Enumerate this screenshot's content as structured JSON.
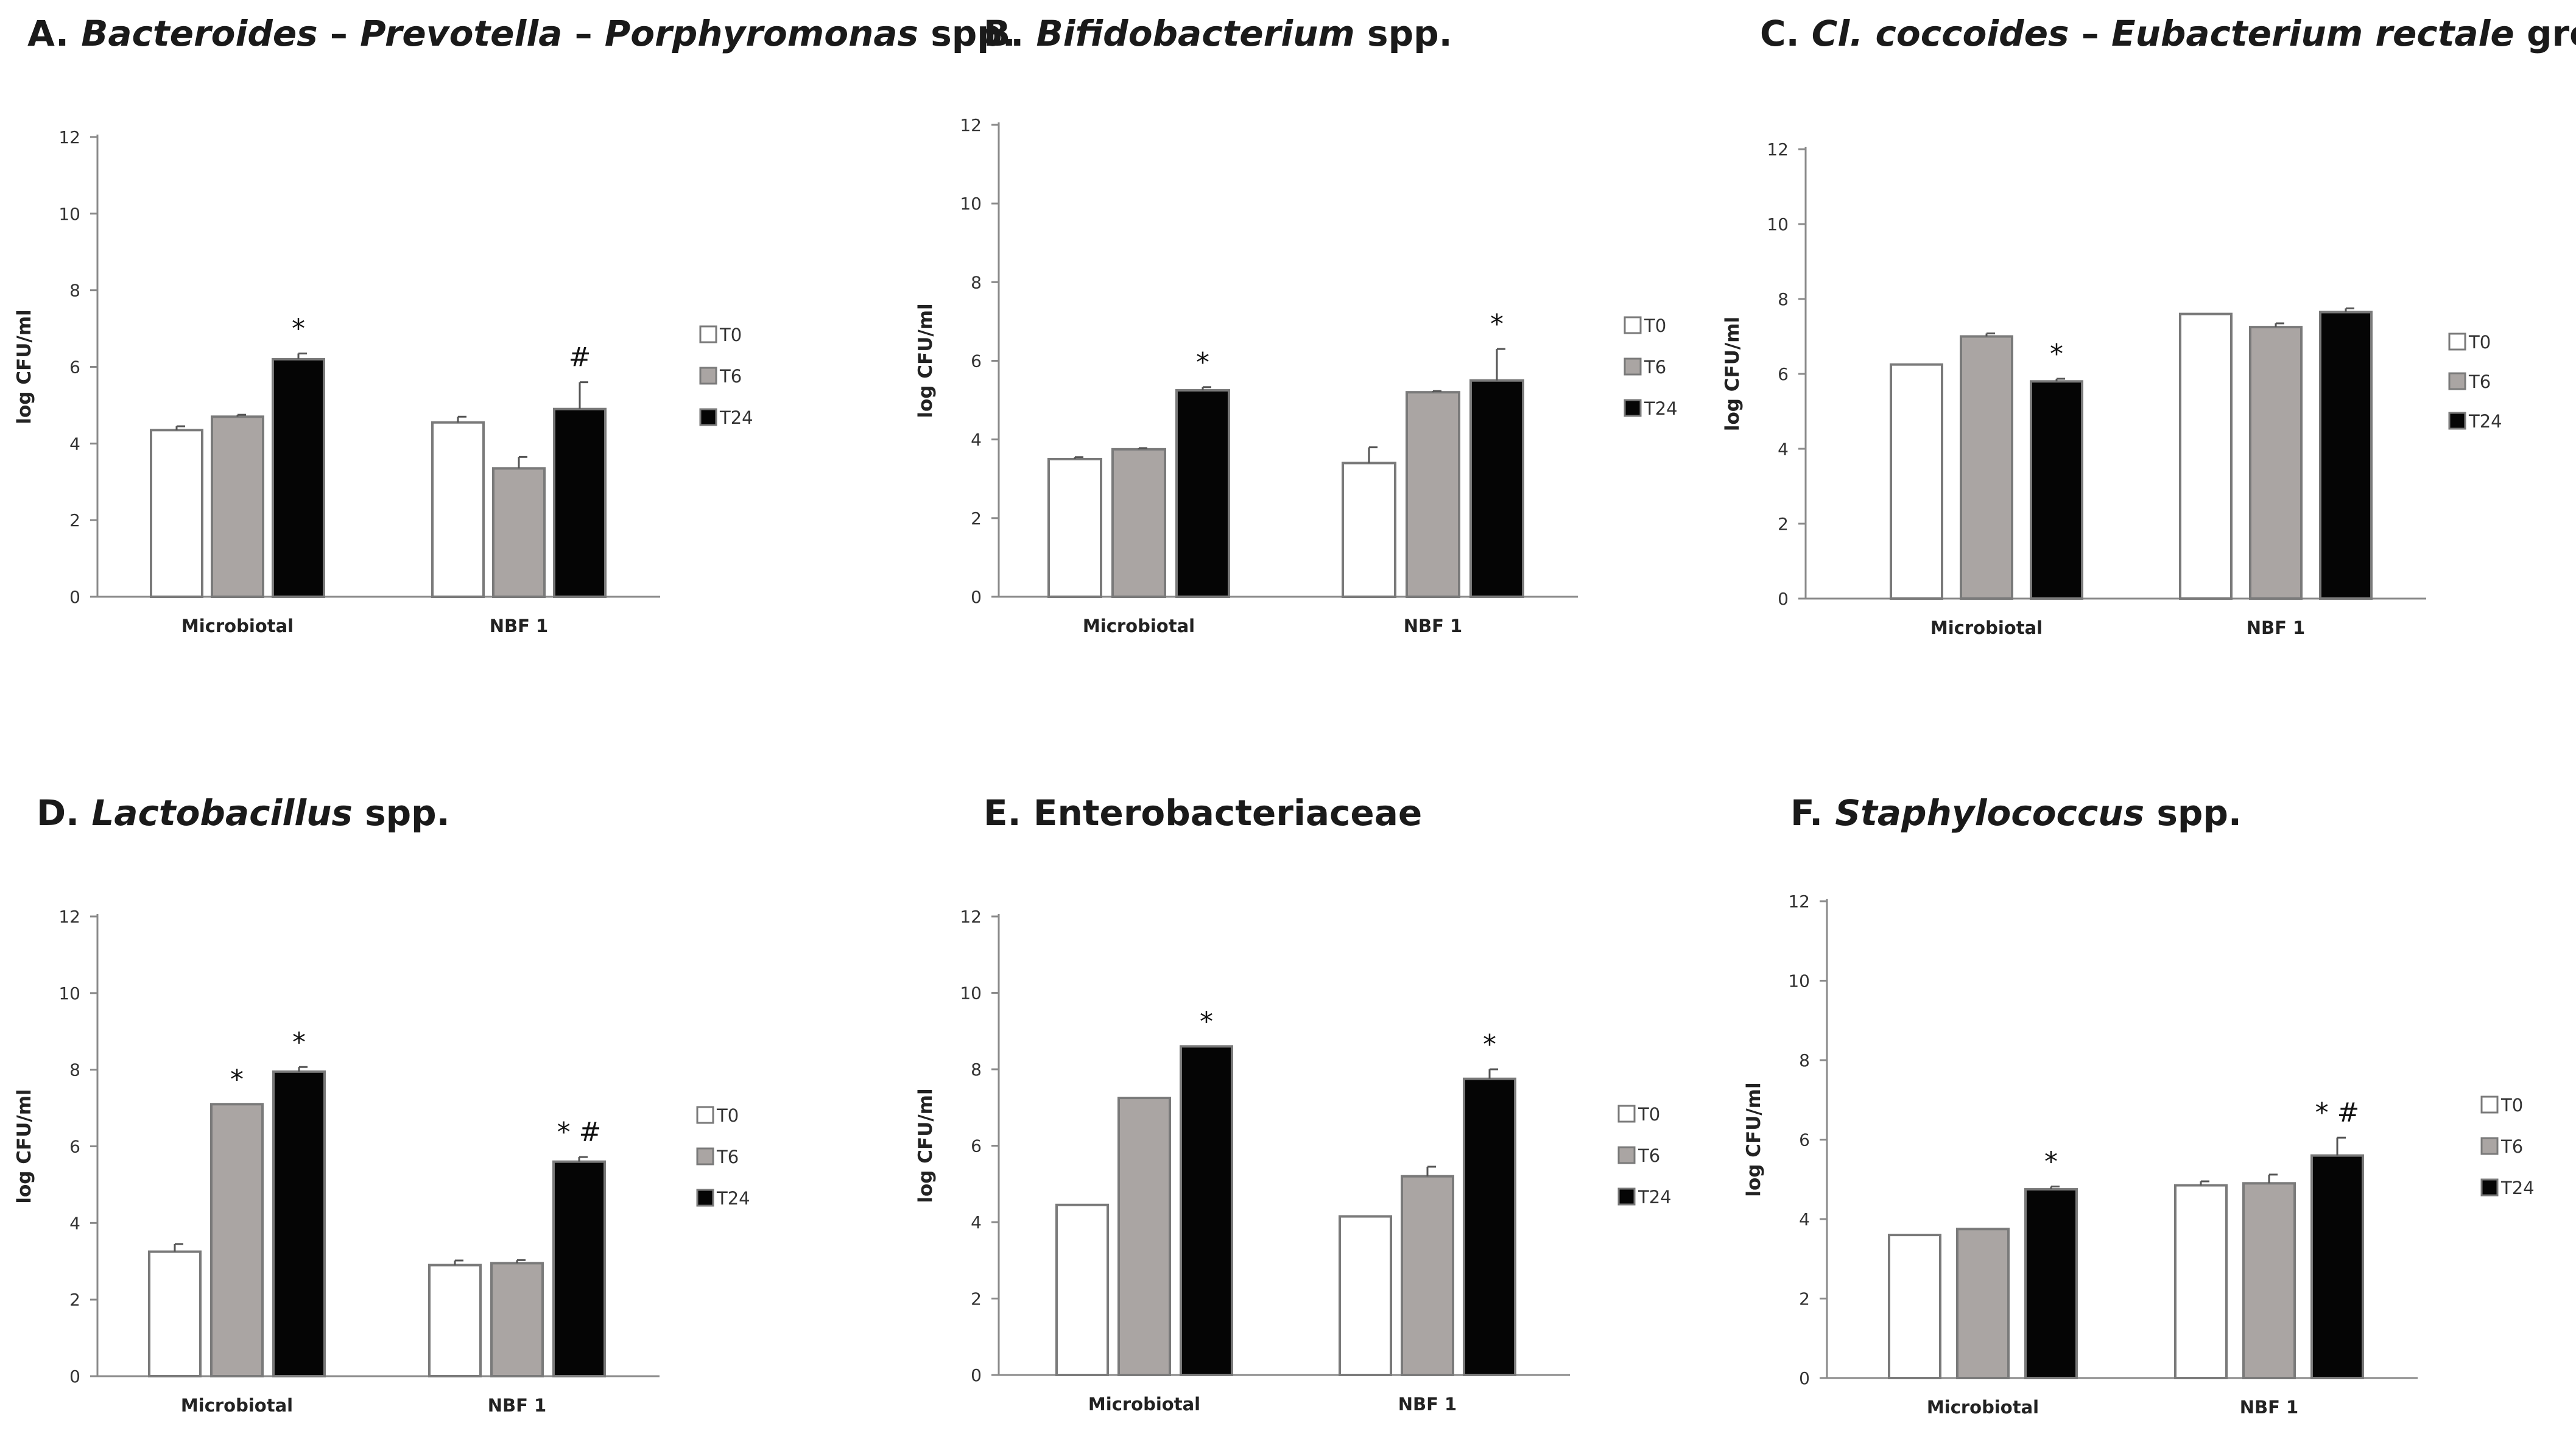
{
  "colors": {
    "T0": "#ffffff",
    "T6": "#aaa5a3",
    "T24": "#050505",
    "axis": "#8a8a8a",
    "bar_edge": "#7a7a7a"
  },
  "chart_data": [
    {
      "id": "A",
      "type": "bar",
      "title_parts": [
        "A. ",
        "Bacteroides",
        " – ",
        "Prevotella",
        " – ",
        "Porphyromonas",
        " spp."
      ],
      "categories": [
        "Microbiotal",
        "NBF 1"
      ],
      "ylabel": "log CFU/ml",
      "ylim": [
        0,
        12
      ],
      "yticks": [
        "0",
        "2",
        "4",
        "6",
        "8",
        "10",
        "12"
      ],
      "series": [
        {
          "name": "T0",
          "values": [
            4.35,
            4.55
          ],
          "errors": [
            0.1,
            0.15
          ]
        },
        {
          "name": "T6",
          "values": [
            4.7,
            3.35
          ],
          "errors": [
            0.05,
            0.3
          ]
        },
        {
          "name": "T24",
          "values": [
            6.2,
            4.9
          ],
          "errors": [
            0.15,
            0.7
          ]
        }
      ],
      "legend": [
        "T0",
        "T6",
        "T24"
      ],
      "annotations": [
        {
          "series": "T24",
          "category": "Microbiotal",
          "text": "*"
        },
        {
          "series": "T24",
          "category": "NBF 1",
          "text": "#"
        }
      ]
    },
    {
      "id": "B",
      "type": "bar",
      "title_parts": [
        "B. ",
        "Bifidobacterium",
        " spp."
      ],
      "categories": [
        "Microbiotal",
        "NBF 1"
      ],
      "ylabel": "log CFU/ml",
      "ylim": [
        0,
        12
      ],
      "yticks": [
        "0",
        "2",
        "4",
        "6",
        "8",
        "10",
        "12"
      ],
      "series": [
        {
          "name": "T0",
          "values": [
            3.5,
            3.4
          ],
          "errors": [
            0.05,
            0.4
          ]
        },
        {
          "name": "T6",
          "values": [
            3.75,
            5.2
          ],
          "errors": [
            0.03,
            0.03
          ]
        },
        {
          "name": "T24",
          "values": [
            5.25,
            5.5
          ],
          "errors": [
            0.08,
            0.8
          ]
        }
      ],
      "legend": [
        "T0",
        "T6",
        "T24"
      ],
      "annotations": [
        {
          "series": "T24",
          "category": "Microbiotal",
          "text": "*"
        },
        {
          "series": "T24",
          "category": "NBF 1",
          "text": "*"
        }
      ]
    },
    {
      "id": "C",
      "type": "bar",
      "title_parts": [
        "C. ",
        "Cl. coccoides",
        " – ",
        "Eubacterium rectale",
        " group"
      ],
      "categories": [
        "Microbiotal",
        "NBF 1"
      ],
      "ylabel": "log CFU/ml",
      "ylim": [
        0,
        12
      ],
      "yticks": [
        "0",
        "2",
        "4",
        "6",
        "8",
        "10",
        "12"
      ],
      "series": [
        {
          "name": "T0",
          "values": [
            6.25,
            7.6
          ],
          "errors": [
            0.0,
            0.0
          ]
        },
        {
          "name": "T6",
          "values": [
            7.0,
            7.25
          ],
          "errors": [
            0.08,
            0.1
          ]
        },
        {
          "name": "T24",
          "values": [
            5.8,
            7.65
          ],
          "errors": [
            0.07,
            0.1
          ]
        }
      ],
      "legend": [
        "T0",
        "T6",
        "T24"
      ],
      "annotations": [
        {
          "series": "T24",
          "category": "Microbiotal",
          "text": "*"
        }
      ]
    },
    {
      "id": "D",
      "type": "bar",
      "title_parts": [
        "D. ",
        "Lactobacillus",
        " spp."
      ],
      "categories": [
        "Microbiotal",
        "NBF 1"
      ],
      "ylabel": "log CFU/ml",
      "ylim": [
        0,
        12
      ],
      "yticks": [
        "0",
        "2",
        "4",
        "6",
        "8",
        "10",
        "12"
      ],
      "series": [
        {
          "name": "T0",
          "values": [
            3.25,
            2.9
          ],
          "errors": [
            0.2,
            0.12
          ]
        },
        {
          "name": "T6",
          "values": [
            7.1,
            2.95
          ],
          "errors": [
            0.0,
            0.08
          ]
        },
        {
          "name": "T24",
          "values": [
            7.95,
            5.6
          ],
          "errors": [
            0.12,
            0.12
          ]
        }
      ],
      "legend": [
        "T0",
        "T6",
        "T24"
      ],
      "annotations": [
        {
          "series": "T6",
          "category": "Microbiotal",
          "text": "*"
        },
        {
          "series": "T24",
          "category": "Microbiotal",
          "text": "*"
        },
        {
          "series": "T24",
          "category": "NBF 1",
          "text": "* #"
        }
      ]
    },
    {
      "id": "E",
      "type": "bar",
      "title_parts": [
        "E. Enterobacteriaceae"
      ],
      "categories": [
        "Microbiotal",
        "NBF 1"
      ],
      "ylabel": "log CFU/ml",
      "ylim": [
        0,
        12
      ],
      "yticks": [
        "0",
        "2",
        "4",
        "6",
        "8",
        "10",
        "12"
      ],
      "series": [
        {
          "name": "T0",
          "values": [
            4.45,
            4.15
          ],
          "errors": [
            0.0,
            0.0
          ]
        },
        {
          "name": "T6",
          "values": [
            7.25,
            5.2
          ],
          "errors": [
            0.0,
            0.25
          ]
        },
        {
          "name": "T24",
          "values": [
            8.6,
            7.75
          ],
          "errors": [
            0.0,
            0.25
          ]
        }
      ],
      "legend": [
        "T0",
        "T6",
        "T24"
      ],
      "annotations": [
        {
          "series": "T24",
          "category": "Microbiotal",
          "text": "*"
        },
        {
          "series": "T24",
          "category": "NBF 1",
          "text": "*"
        }
      ]
    },
    {
      "id": "F",
      "type": "bar",
      "title_parts": [
        "F. ",
        "Staphylococcus",
        " spp."
      ],
      "categories": [
        "Microbiotal",
        "NBF 1"
      ],
      "ylabel": "log CFU/ml",
      "ylim": [
        0,
        12
      ],
      "yticks": [
        "0",
        "2",
        "4",
        "6",
        "8",
        "10",
        "12"
      ],
      "series": [
        {
          "name": "T0",
          "values": [
            3.6,
            4.85
          ],
          "errors": [
            0.0,
            0.1
          ]
        },
        {
          "name": "T6",
          "values": [
            3.75,
            4.9
          ],
          "errors": [
            0.0,
            0.22
          ]
        },
        {
          "name": "T24",
          "values": [
            4.75,
            5.6
          ],
          "errors": [
            0.07,
            0.45
          ]
        }
      ],
      "legend": [
        "T0",
        "T6",
        "T24"
      ],
      "annotations": [
        {
          "series": "T24",
          "category": "Microbiotal",
          "text": "*"
        },
        {
          "series": "T24",
          "category": "NBF 1",
          "text": "* #"
        }
      ]
    }
  ]
}
